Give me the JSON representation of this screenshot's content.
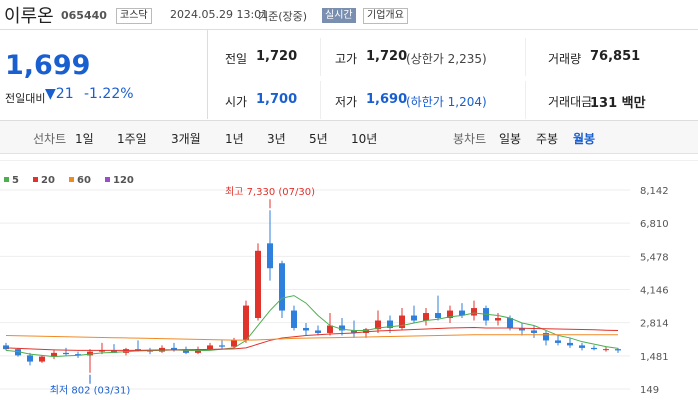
{
  "header": {
    "name": "이루온",
    "code": "065440",
    "market": "코스닥",
    "datetime": "2024.05.29 13:01",
    "basis": "기준(장중)",
    "realtime": "실시간",
    "company_info": "기업개요"
  },
  "quote": {
    "price": "1,699",
    "change_label": "전일대비",
    "change": "21",
    "change_rate": "-1.22%"
  },
  "summary": [
    [
      {
        "label": "전일",
        "value": "1,720"
      },
      {
        "label": "고가",
        "value": "1,720",
        "extra": "(상한가 2,235)"
      },
      {
        "label": "거래량",
        "value": "76,851"
      }
    ],
    [
      {
        "label": "시가",
        "value": "1,700"
      },
      {
        "label": "저가",
        "value": "1,690",
        "extra": "(하한가 1,204)"
      },
      {
        "label": "거래대금",
        "value": "131 백만"
      }
    ]
  ],
  "tabs": {
    "line_label": "선차트",
    "line": [
      "1일",
      "1주일",
      "3개월",
      "1년",
      "3년",
      "5년",
      "10년"
    ],
    "candle_label": "봉차트",
    "candle": [
      "일봉",
      "주봉",
      "월봉"
    ],
    "selected": "월봉"
  },
  "chart_data": {
    "type": "candlestick",
    "ylim": [
      149,
      8142
    ],
    "yticks": [
      149,
      {
        "value": 1481,
        "label": "1,481"
      },
      {
        "value": 2814,
        "label": "2,814"
      },
      {
        "value": 4146,
        "label": "4,146"
      },
      {
        "value": 5478,
        "label": "5,478"
      },
      {
        "value": 6810,
        "label": "6,810"
      },
      {
        "value": 8142,
        "label": "8,142"
      }
    ],
    "up_color": "#e0332c",
    "down_color": "#2f7fdc",
    "candles": [
      {
        "open": 1900,
        "high": 2000,
        "low": 1700,
        "close": 1750
      },
      {
        "open": 1750,
        "high": 1800,
        "low": 1450,
        "close": 1500
      },
      {
        "open": 1500,
        "high": 1600,
        "low": 1100,
        "close": 1250
      },
      {
        "open": 1250,
        "high": 1500,
        "low": 1200,
        "close": 1450
      },
      {
        "open": 1450,
        "high": 1700,
        "low": 1350,
        "close": 1600
      },
      {
        "open": 1600,
        "high": 1800,
        "low": 1500,
        "close": 1550
      },
      {
        "open": 1550,
        "high": 1650,
        "low": 1400,
        "close": 1500
      },
      {
        "open": 1500,
        "high": 1750,
        "low": 802,
        "close": 1650
      },
      {
        "open": 1650,
        "high": 2000,
        "low": 1550,
        "close": 1700
      },
      {
        "open": 1700,
        "high": 1950,
        "low": 1600,
        "close": 1600
      },
      {
        "open": 1600,
        "high": 1800,
        "low": 1500,
        "close": 1750
      },
      {
        "open": 1750,
        "high": 2100,
        "low": 1650,
        "close": 1700
      },
      {
        "open": 1700,
        "high": 1800,
        "low": 1550,
        "close": 1650
      },
      {
        "open": 1650,
        "high": 1900,
        "low": 1600,
        "close": 1800
      },
      {
        "open": 1800,
        "high": 2000,
        "low": 1650,
        "close": 1700
      },
      {
        "open": 1700,
        "high": 1850,
        "low": 1550,
        "close": 1600
      },
      {
        "open": 1600,
        "high": 1850,
        "low": 1550,
        "close": 1750
      },
      {
        "open": 1750,
        "high": 2000,
        "low": 1700,
        "close": 1900
      },
      {
        "open": 1900,
        "high": 2100,
        "low": 1750,
        "close": 1850
      },
      {
        "open": 1850,
        "high": 2200,
        "low": 1800,
        "close": 2100
      },
      {
        "open": 2100,
        "high": 3700,
        "low": 2000,
        "close": 3500
      },
      {
        "open": 3000,
        "high": 6000,
        "low": 2900,
        "close": 5700
      },
      {
        "open": 6000,
        "high": 7330,
        "low": 4500,
        "close": 5000
      },
      {
        "open": 5200,
        "high": 5300,
        "low": 3000,
        "close": 3300
      },
      {
        "open": 3300,
        "high": 3500,
        "low": 2500,
        "close": 2600
      },
      {
        "open": 2600,
        "high": 2800,
        "low": 2300,
        "close": 2500
      },
      {
        "open": 2500,
        "high": 2700,
        "low": 2300,
        "close": 2400
      },
      {
        "open": 2400,
        "high": 3200,
        "low": 2300,
        "close": 2700
      },
      {
        "open": 2700,
        "high": 3000,
        "low": 2300,
        "close": 2500
      },
      {
        "open": 2500,
        "high": 2900,
        "low": 2200,
        "close": 2400
      },
      {
        "open": 2400,
        "high": 2600,
        "low": 2200,
        "close": 2550
      },
      {
        "open": 2550,
        "high": 3300,
        "low": 2400,
        "close": 2900
      },
      {
        "open": 2900,
        "high": 3100,
        "low": 2400,
        "close": 2600
      },
      {
        "open": 2600,
        "high": 3400,
        "low": 2500,
        "close": 3100
      },
      {
        "open": 3100,
        "high": 3500,
        "low": 2800,
        "close": 2900
      },
      {
        "open": 2900,
        "high": 3400,
        "low": 2700,
        "close": 3200
      },
      {
        "open": 3200,
        "high": 3900,
        "low": 2900,
        "close": 3000
      },
      {
        "open": 3000,
        "high": 3500,
        "low": 2800,
        "close": 3300
      },
      {
        "open": 3300,
        "high": 3600,
        "low": 3000,
        "close": 3100
      },
      {
        "open": 3100,
        "high": 3700,
        "low": 2900,
        "close": 3400
      },
      {
        "open": 3400,
        "high": 3500,
        "low": 2700,
        "close": 2900
      },
      {
        "open": 2900,
        "high": 3200,
        "low": 2700,
        "close": 3000
      },
      {
        "open": 3000,
        "high": 3100,
        "low": 2500,
        "close": 2600
      },
      {
        "open": 2600,
        "high": 2800,
        "low": 2300,
        "close": 2500
      },
      {
        "open": 2500,
        "high": 2700,
        "low": 2200,
        "close": 2400
      },
      {
        "open": 2400,
        "high": 2500,
        "low": 1900,
        "close": 2100
      },
      {
        "open": 2100,
        "high": 2300,
        "low": 1900,
        "close": 2000
      },
      {
        "open": 2000,
        "high": 2200,
        "low": 1800,
        "close": 1900
      },
      {
        "open": 1900,
        "high": 2000,
        "low": 1700,
        "close": 1800
      },
      {
        "open": 1800,
        "high": 1900,
        "low": 1700,
        "close": 1750
      },
      {
        "open": 1750,
        "high": 1850,
        "low": 1650,
        "close": 1750
      },
      {
        "open": 1750,
        "high": 1800,
        "low": 1600,
        "close": 1699
      }
    ],
    "series": [
      {
        "name": "5",
        "color": "#4caf50",
        "values": [
          1700,
          1650,
          1550,
          1500,
          1450,
          1480,
          1500,
          1550,
          1600,
          1620,
          1650,
          1680,
          1690,
          1700,
          1720,
          1700,
          1690,
          1700,
          1750,
          1800,
          2100,
          2700,
          3300,
          3800,
          3900,
          3600,
          3100,
          2700,
          2550,
          2500,
          2500,
          2600,
          2650,
          2700,
          2800,
          2900,
          2950,
          3050,
          3100,
          3200,
          3150,
          3100,
          3000,
          2800,
          2700,
          2500,
          2300,
          2200,
          2050,
          1950,
          1850,
          1780
        ]
      },
      {
        "name": "20",
        "color": "#e0332c",
        "values": [
          1800,
          1780,
          1760,
          1740,
          1720,
          1710,
          1700,
          1700,
          1700,
          1700,
          1700,
          1700,
          1710,
          1720,
          1720,
          1730,
          1730,
          1740,
          1750,
          1760,
          1800,
          1950,
          2100,
          2200,
          2250,
          2300,
          2330,
          2360,
          2380,
          2400,
          2450,
          2480,
          2500,
          2520,
          2540,
          2560,
          2580,
          2600,
          2610,
          2620,
          2600,
          2600,
          2600,
          2590,
          2580,
          2570,
          2560,
          2550,
          2540,
          2530,
          2510,
          2500
        ]
      },
      {
        "name": "60",
        "color": "#f08a24",
        "values": [
          2300,
          2290,
          2280,
          2270,
          2260,
          2250,
          2240,
          2230,
          2220,
          2210,
          2200,
          2190,
          2180,
          2170,
          2160,
          2150,
          2140,
          2130,
          2120,
          2110,
          2110,
          2120,
          2140,
          2160,
          2180,
          2190,
          2200,
          2210,
          2220,
          2230,
          2240,
          2250,
          2260,
          2270,
          2280,
          2290,
          2300,
          2310,
          2320,
          2330,
          2330,
          2330,
          2330,
          2330,
          2330,
          2330,
          2330,
          2330,
          2330,
          2330,
          2330,
          2330
        ]
      },
      {
        "name": "120",
        "color": "#9c4dcc",
        "values": [
          null,
          null,
          null,
          null,
          null,
          null,
          null,
          null,
          null,
          null,
          null,
          null,
          null,
          null,
          null,
          null,
          null,
          null,
          null,
          null,
          null,
          null,
          null,
          null,
          null,
          null,
          null,
          null,
          null,
          null,
          null,
          null,
          null,
          null,
          null,
          null,
          null,
          null,
          null,
          null,
          null,
          null,
          null,
          null,
          null,
          null,
          null,
          null,
          null,
          null,
          null,
          null
        ]
      }
    ],
    "annotations": [
      {
        "text": "최고 7,330 (07/30)",
        "index": 22,
        "value": 7330
      },
      {
        "text": "최저 802 (03/31)",
        "index": 7,
        "value": 802
      }
    ]
  }
}
